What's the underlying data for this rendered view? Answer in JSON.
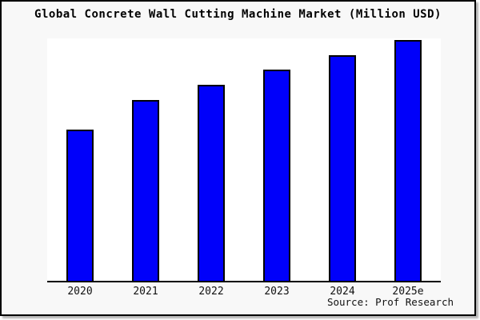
{
  "title": "Global Concrete Wall Cutting Machine Market (Million USD)",
  "source_note": "Source: Prof Research",
  "colors": {
    "page_background": "#f8f8f8",
    "plot_background": "#ffffff",
    "frame_border": "#000000",
    "bar_fill": "#0000fa",
    "bar_border": "#000000",
    "axis_line": "#000000",
    "text": "#000000"
  },
  "chart_data": {
    "type": "bar",
    "title": "Global Concrete Wall Cutting Machine Market (Million USD)",
    "categories": [
      "2020",
      "2021",
      "2022",
      "2023",
      "2024",
      "2025e"
    ],
    "values": [
      62.8,
      75.1,
      81.4,
      87.7,
      93.7,
      100
    ],
    "value_units": "relative bar height, percent of tallest bar (no y-axis tick labels or gridlines shown in image)",
    "xlabel": "",
    "ylabel": "",
    "grid": false,
    "legend": false,
    "annotation": "Source: Prof Research",
    "bar_color": "#0000fa",
    "bar_border_color": "#000000"
  }
}
